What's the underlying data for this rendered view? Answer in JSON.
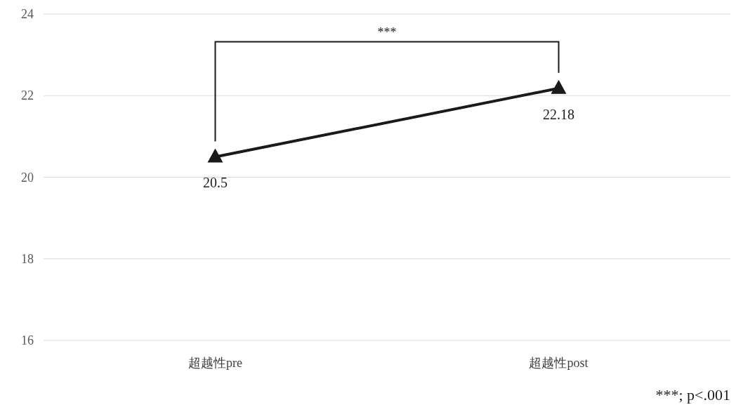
{
  "chart_data": {
    "type": "line",
    "categories": [
      "超越性pre",
      "超越性post"
    ],
    "series": [
      {
        "color": "#1a1a1a",
        "values": [
          20.5,
          22.18
        ]
      }
    ],
    "ylim": [
      16,
      24
    ],
    "yticks": [
      16,
      18,
      20,
      22,
      24
    ],
    "grid": "y",
    "marker": "triangle",
    "line_style": "solid",
    "data_labels": true,
    "annotations": [
      "***",
      "***; p<.001"
    ]
  }
}
